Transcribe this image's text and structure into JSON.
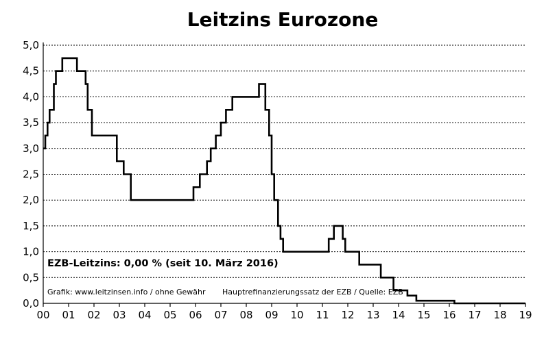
{
  "chart_data": {
    "type": "line",
    "title": "Leitzins Eurozone",
    "xlabel": "",
    "ylabel": "",
    "x_ticks": [
      "00",
      "01",
      "02",
      "03",
      "04",
      "05",
      "06",
      "07",
      "08",
      "09",
      "10",
      "11",
      "12",
      "13",
      "14",
      "15",
      "16",
      "17",
      "18",
      "19"
    ],
    "y_ticks": [
      "0,0",
      "0,5",
      "1,0",
      "1,5",
      "2,0",
      "2,5",
      "3,0",
      "3,5",
      "4,0",
      "4,5",
      "5,0"
    ],
    "ylim": [
      0,
      5
    ],
    "xlim": [
      2000.0,
      2019.0
    ],
    "grid": "horizontal dashed",
    "step": true,
    "series": [
      {
        "name": "",
        "color": "#000000",
        "x": [
          2000.0,
          2000.08,
          2000.17,
          2000.25,
          2000.42,
          2000.5,
          2000.75,
          2001.33,
          2001.67,
          2001.75,
          2001.92,
          2002.9,
          2003.17,
          2003.45,
          2005.92,
          2006.17,
          2006.45,
          2006.6,
          2006.8,
          2007.0,
          2007.2,
          2007.45,
          2008.5,
          2008.75,
          2008.9,
          2009.0,
          2009.1,
          2009.25,
          2009.35,
          2009.45,
          2011.25,
          2011.45,
          2011.8,
          2011.9,
          2012.45,
          2013.3,
          2013.8,
          2014.35,
          2014.7,
          2016.2,
          2019.0
        ],
        "y": [
          3.0,
          3.25,
          3.5,
          3.75,
          4.25,
          4.5,
          4.75,
          4.5,
          4.25,
          3.75,
          3.25,
          2.75,
          2.5,
          2.0,
          2.25,
          2.5,
          2.75,
          3.0,
          3.25,
          3.5,
          3.75,
          4.0,
          4.25,
          3.75,
          3.25,
          2.5,
          2.0,
          1.5,
          1.25,
          1.0,
          1.25,
          1.5,
          1.25,
          1.0,
          0.75,
          0.5,
          0.25,
          0.15,
          0.05,
          0.0,
          0.0
        ]
      }
    ]
  },
  "annotations": {
    "rate_label": "EZB-Leitzins: 0,00 % (seit 10. März 2016)",
    "credit": "Grafik: www.leitzinsen.info / ohne Gewähr",
    "source": "Hauptrefinanzierungssatz der EZB / Quelle: EZB"
  }
}
